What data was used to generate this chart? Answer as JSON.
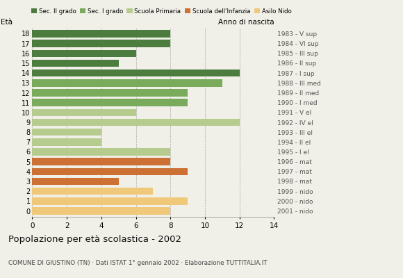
{
  "ages": [
    18,
    17,
    16,
    15,
    14,
    13,
    12,
    11,
    10,
    9,
    8,
    7,
    6,
    5,
    4,
    3,
    2,
    1,
    0
  ],
  "values": [
    8,
    8,
    6,
    5,
    12,
    11,
    9,
    9,
    6,
    12,
    4,
    4,
    8,
    8,
    9,
    5,
    7,
    9,
    8
  ],
  "right_labels": [
    "1983 - V sup",
    "1984 - VI sup",
    "1985 - III sup",
    "1986 - II sup",
    "1987 - I sup",
    "1988 - III med",
    "1989 - II med",
    "1990 - I med",
    "1991 - V el",
    "1992 - IV el",
    "1993 - III el",
    "1994 - II el",
    "1995 - I el",
    "1996 - mat",
    "1997 - mat",
    "1998 - mat",
    "1999 - nido",
    "2000 - nido",
    "2001 - nido"
  ],
  "bar_colors": [
    "#4d7c3f",
    "#4d7c3f",
    "#4d7c3f",
    "#4d7c3f",
    "#4d7c3f",
    "#7aab5c",
    "#7aab5c",
    "#7aab5c",
    "#b5cc8e",
    "#b5cc8e",
    "#b5cc8e",
    "#b5cc8e",
    "#b5cc8e",
    "#cc7033",
    "#cc7033",
    "#cc7033",
    "#f0c87a",
    "#f0c87a",
    "#f0c87a"
  ],
  "legend_labels": [
    "Sec. II grado",
    "Sec. I grado",
    "Scuola Primaria",
    "Scuola dell'Infanzia",
    "Asilo Nido"
  ],
  "legend_colors": [
    "#4d7c3f",
    "#7aab5c",
    "#b5cc8e",
    "#cc7033",
    "#f0c87a"
  ],
  "title": "Popolazione per età scolastica - 2002",
  "subtitle": "COMUNE DI GIUSTINO (TN) · Dati ISTAT 1° gennaio 2002 · Elaborazione TUTTITALIA.IT",
  "ylabel_left": "Età",
  "ylabel_right": "Anno di nascita",
  "xlim": [
    0,
    14
  ],
  "xticks": [
    0,
    2,
    4,
    6,
    8,
    10,
    12,
    14
  ],
  "background_color": "#f0f0e8"
}
